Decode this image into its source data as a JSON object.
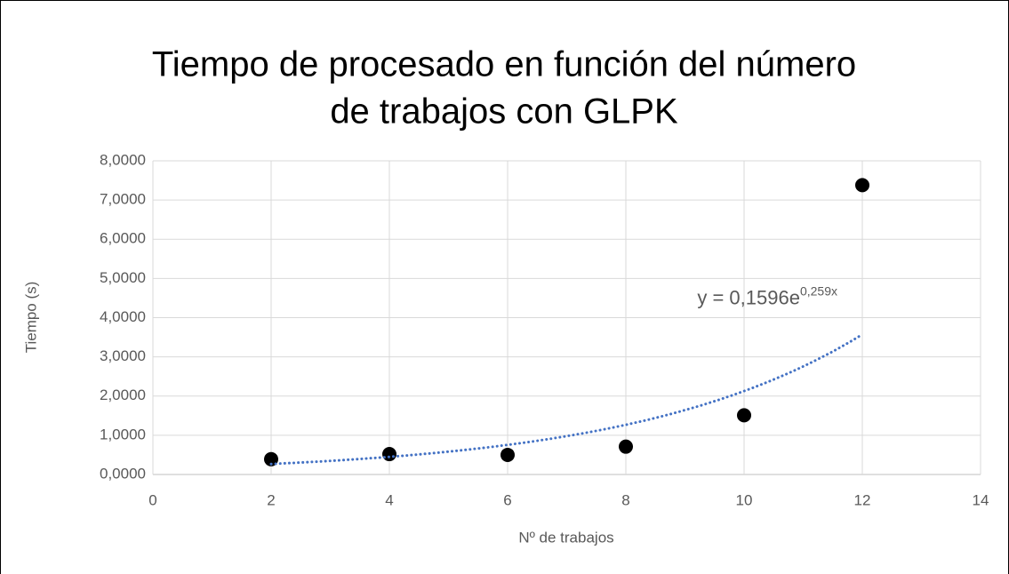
{
  "chart_data": {
    "type": "scatter",
    "title": [
      "Tiempo de procesado en función del número",
      "de trabajos con GLPK"
    ],
    "xlabel": "Nº de trabajos",
    "ylabel": "Tiempo (s)",
    "x": [
      2,
      4,
      6,
      8,
      10,
      12
    ],
    "values": [
      0.39,
      0.52,
      0.5,
      0.71,
      1.51,
      7.38
    ],
    "color": "#000000",
    "xlim": [
      0,
      14
    ],
    "xticks": [
      0,
      2,
      4,
      6,
      8,
      10,
      12,
      14
    ],
    "ylim": [
      0,
      8
    ],
    "yticks": [
      {
        "value": 0,
        "label": "0,0000"
      },
      {
        "value": 1,
        "label": "1,0000"
      },
      {
        "value": 2,
        "label": "2,0000"
      },
      {
        "value": 3,
        "label": "3,0000"
      },
      {
        "value": 4,
        "label": "4,0000"
      },
      {
        "value": 5,
        "label": "5,0000"
      },
      {
        "value": 6,
        "label": "6,0000"
      },
      {
        "value": 7,
        "label": "7,0000"
      },
      {
        "value": 8,
        "label": "8,0000"
      }
    ],
    "grid": true,
    "trendline": {
      "kind": "exponential",
      "a": 0.1596,
      "b": 0.259,
      "color": "#4472c4",
      "label": "y = 0,1596e",
      "label_exponent": "0,259x"
    }
  }
}
